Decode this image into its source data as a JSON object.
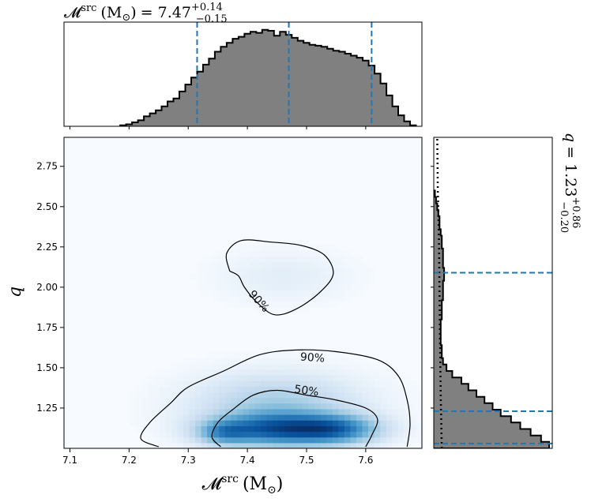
{
  "chart_data": [
    {
      "panel": "top-marginal",
      "type": "histogram",
      "title": {
        "symbol": "𝓜",
        "superscript": "src",
        "unit": "(M",
        "unit_sub": "⊙",
        "unit_close": ")",
        "equals": "= 7.47",
        "upper_err": "+0.14",
        "lower_err": "−0.15"
      },
      "xlim": [
        7.09,
        7.695
      ],
      "dashed_lines_x": [
        7.315,
        7.47,
        7.61
      ],
      "line_color": "#1f77b4",
      "fill_color": "#808080",
      "bins": [
        7.19,
        7.2,
        7.21,
        7.22,
        7.23,
        7.24,
        7.25,
        7.26,
        7.27,
        7.28,
        7.29,
        7.3,
        7.31,
        7.32,
        7.33,
        7.34,
        7.35,
        7.36,
        7.37,
        7.38,
        7.39,
        7.4,
        7.41,
        7.42,
        7.43,
        7.44,
        7.45,
        7.46,
        7.47,
        7.48,
        7.49,
        7.5,
        7.51,
        7.52,
        7.53,
        7.54,
        7.55,
        7.56,
        7.57,
        7.58,
        7.59,
        7.6,
        7.61,
        7.62,
        7.63,
        7.64,
        7.65,
        7.66,
        7.67,
        7.68
      ],
      "counts": [
        0.01,
        0.02,
        0.04,
        0.06,
        0.1,
        0.13,
        0.16,
        0.2,
        0.25,
        0.28,
        0.35,
        0.42,
        0.49,
        0.55,
        0.62,
        0.68,
        0.75,
        0.8,
        0.84,
        0.88,
        0.9,
        0.93,
        0.95,
        0.94,
        0.97,
        0.96,
        0.91,
        0.95,
        0.92,
        0.89,
        0.86,
        0.84,
        0.82,
        0.81,
        0.8,
        0.78,
        0.76,
        0.75,
        0.73,
        0.71,
        0.69,
        0.66,
        0.61,
        0.53,
        0.43,
        0.31,
        0.2,
        0.11,
        0.05,
        0.01
      ]
    },
    {
      "panel": "main-2d",
      "type": "heatmap",
      "xlabel": {
        "symbol": "𝓜",
        "superscript": "src",
        "unit": "(M",
        "unit_sub": "⊙",
        "unit_close": ")"
      },
      "ylabel": "q",
      "xlim": [
        7.09,
        7.695
      ],
      "ylim": [
        1.0,
        2.93
      ],
      "x_ticks": [
        "7.1",
        "7.2",
        "7.3",
        "7.4",
        "7.5",
        "7.6"
      ],
      "y_ticks": [
        "1.25",
        "1.50",
        "1.75",
        "2.00",
        "2.25",
        "2.50",
        "2.75"
      ],
      "colormap": "Blues",
      "density_peaks": [
        {
          "x": 7.45,
          "y": 1.12,
          "sx": 0.07,
          "sy": 0.07,
          "w": 1.0
        },
        {
          "x": 7.55,
          "y": 1.12,
          "sx": 0.05,
          "sy": 0.06,
          "w": 0.75
        },
        {
          "x": 7.36,
          "y": 1.1,
          "sx": 0.03,
          "sy": 0.05,
          "w": 0.5
        },
        {
          "x": 7.45,
          "y": 1.28,
          "sx": 0.09,
          "sy": 0.12,
          "w": 0.35
        },
        {
          "x": 7.46,
          "y": 2.07,
          "sx": 0.07,
          "sy": 0.1,
          "w": 0.08
        }
      ],
      "contours": [
        {
          "label": "90%",
          "points": [
            [
              7.25,
              1.01
            ],
            [
              7.22,
              1.06
            ],
            [
              7.235,
              1.16
            ],
            [
              7.27,
              1.28
            ],
            [
              7.3,
              1.38
            ],
            [
              7.36,
              1.48
            ],
            [
              7.42,
              1.58
            ],
            [
              7.48,
              1.61
            ],
            [
              7.55,
              1.6
            ],
            [
              7.62,
              1.55
            ],
            [
              7.655,
              1.45
            ],
            [
              7.67,
              1.3
            ],
            [
              7.675,
              1.15
            ],
            [
              7.67,
              1.01
            ]
          ]
        },
        {
          "label": "50%",
          "points": [
            [
              7.355,
              1.01
            ],
            [
              7.34,
              1.07
            ],
            [
              7.35,
              1.16
            ],
            [
              7.375,
              1.24
            ],
            [
              7.41,
              1.33
            ],
            [
              7.45,
              1.36
            ],
            [
              7.5,
              1.33
            ],
            [
              7.55,
              1.3
            ],
            [
              7.6,
              1.25
            ],
            [
              7.62,
              1.18
            ],
            [
              7.61,
              1.08
            ],
            [
              7.6,
              1.01
            ]
          ]
        },
        {
          "label": "90%",
          "points": [
            [
              7.37,
              2.1
            ],
            [
              7.365,
              2.21
            ],
            [
              7.39,
              2.29
            ],
            [
              7.44,
              2.28
            ],
            [
              7.49,
              2.26
            ],
            [
              7.53,
              2.2
            ],
            [
              7.545,
              2.08
            ],
            [
              7.52,
              1.96
            ],
            [
              7.48,
              1.86
            ],
            [
              7.445,
              1.83
            ],
            [
              7.415,
              1.91
            ],
            [
              7.395,
              2.0
            ],
            [
              7.385,
              2.07
            ],
            [
              7.37,
              2.1
            ]
          ]
        }
      ]
    },
    {
      "panel": "right-marginal",
      "type": "histogram",
      "orientation": "horizontal",
      "title": {
        "symbol": "q",
        "equals": "= 1.23",
        "upper_err": "+0.86",
        "lower_err": "−0.20"
      },
      "ylim": [
        1.0,
        2.93
      ],
      "dashed_lines_y": [
        1.03,
        1.23,
        2.09
      ],
      "dotted_line": "prior",
      "line_color": "#1f77b4",
      "fill_color": "#808080",
      "bins": [
        1.02,
        1.06,
        1.1,
        1.14,
        1.18,
        1.22,
        1.26,
        1.3,
        1.34,
        1.38,
        1.42,
        1.46,
        1.5,
        1.54,
        1.58,
        1.62,
        1.66,
        1.7,
        1.74,
        1.78,
        1.82,
        1.86,
        1.9,
        1.94,
        1.98,
        2.02,
        2.06,
        2.1,
        2.14,
        2.18,
        2.22,
        2.26,
        2.3,
        2.34,
        2.38,
        2.42,
        2.46,
        2.5,
        2.54,
        2.58
      ],
      "counts": [
        1.0,
        0.93,
        0.84,
        0.75,
        0.67,
        0.58,
        0.51,
        0.44,
        0.37,
        0.3,
        0.24,
        0.16,
        0.11,
        0.08,
        0.07,
        0.07,
        0.06,
        0.06,
        0.06,
        0.06,
        0.07,
        0.07,
        0.07,
        0.08,
        0.08,
        0.08,
        0.09,
        0.09,
        0.08,
        0.08,
        0.08,
        0.07,
        0.07,
        0.06,
        0.05,
        0.05,
        0.04,
        0.03,
        0.02,
        0.01
      ],
      "prior_x": [
        0.07,
        0.06,
        0.055,
        0.05,
        0.045,
        0.035,
        0.03
      ]
    }
  ]
}
